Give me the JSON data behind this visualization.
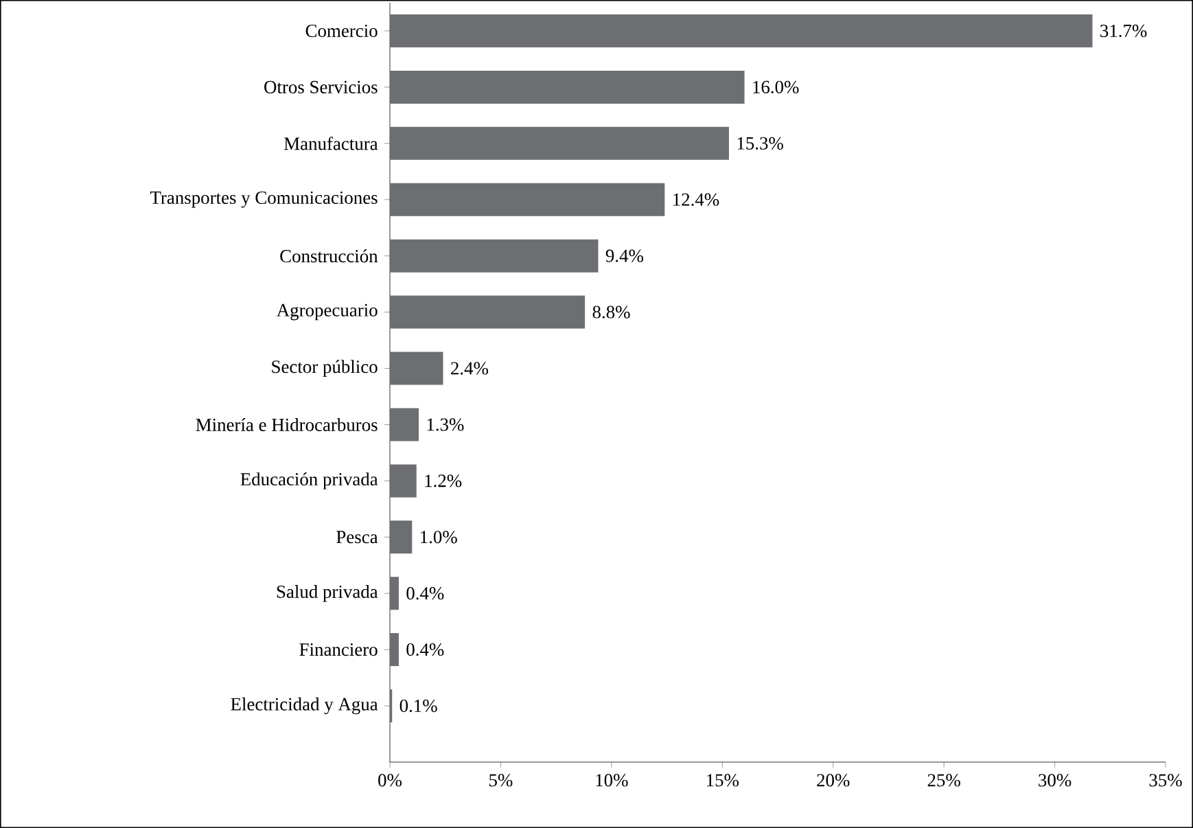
{
  "chart_data": {
    "type": "bar",
    "orientation": "horizontal",
    "color": "#6d6e71",
    "categories": [
      "Comercio",
      "Otros Servicios",
      "Manufactura",
      "Transportes y Comunicaciones",
      "Construcción",
      "Agropecuario",
      "Sector público",
      "Minería e Hidrocarburos",
      "Educación privada",
      "Pesca",
      "Salud privada",
      "Financiero",
      "Electricidad y Agua"
    ],
    "values": [
      31.7,
      16.0,
      15.3,
      12.4,
      9.4,
      8.8,
      2.4,
      1.3,
      1.2,
      1.0,
      0.4,
      0.4,
      0.1
    ],
    "value_labels": [
      "31.7%",
      "16.0%",
      "15.3%",
      "12.4%",
      "9.4%",
      "8.8%",
      "2.4%",
      "1.3%",
      "1.2%",
      "1.0%",
      "0.4%",
      "0.4%",
      "0.1%"
    ],
    "xlim": [
      0,
      35
    ],
    "xticks": [
      {
        "value": 0,
        "label": "0%"
      },
      {
        "value": 5,
        "label": "5%"
      },
      {
        "value": 10,
        "label": "10%"
      },
      {
        "value": 15,
        "label": "15%"
      },
      {
        "value": 20,
        "label": "20%"
      },
      {
        "value": 25,
        "label": "25%"
      },
      {
        "value": 30,
        "label": "30%"
      },
      {
        "value": 35,
        "label": "35%"
      }
    ],
    "grid": false
  }
}
